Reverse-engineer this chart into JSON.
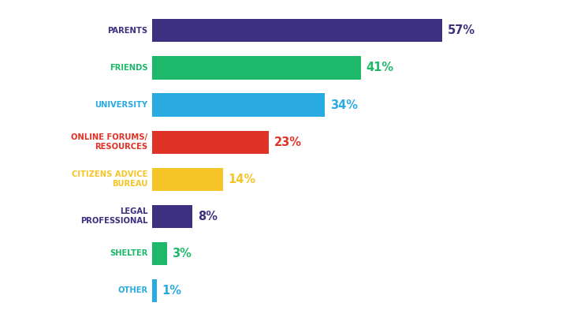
{
  "categories": [
    "PARENTS",
    "FRIENDS",
    "UNIVERSITY",
    "ONLINE FORUMS/\nRESOURCES",
    "CITIZENS ADVICE\nBUREAU",
    "LEGAL\nPROFESSIONAL",
    "SHELTER",
    "OTHER"
  ],
  "values": [
    57,
    41,
    34,
    23,
    14,
    8,
    3,
    1
  ],
  "bar_colors": [
    "#3d3080",
    "#1db86a",
    "#29abe2",
    "#e03328",
    "#f5c427",
    "#3d3080",
    "#1db86a",
    "#29abe2"
  ],
  "label_colors": [
    "#3d3080",
    "#1db86a",
    "#29abe2",
    "#e03328",
    "#f5c427",
    "#3d3080",
    "#1db86a",
    "#29abe2"
  ],
  "category_colors": [
    "#3d3080",
    "#1db86a",
    "#29abe2",
    "#e03328",
    "#f5c427",
    "#3d3080",
    "#1db86a",
    "#29abe2"
  ],
  "background_color": "#ffffff",
  "xlim": [
    0,
    75
  ]
}
